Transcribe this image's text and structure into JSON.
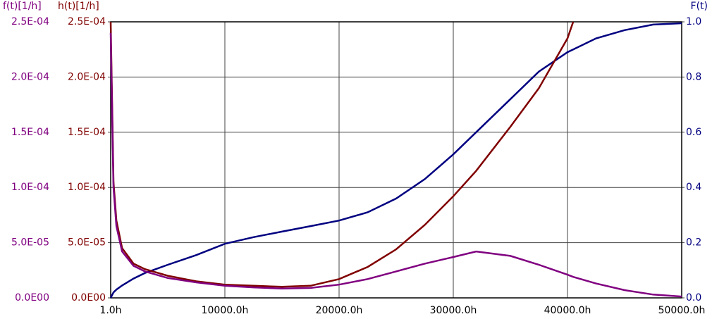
{
  "chart_data": {
    "type": "line",
    "y_label": "f(t)[1/h]",
    "y3_label": "h(t)[1/h]",
    "y2_label": "F(t)",
    "x": [
      1,
      250,
      500,
      1000,
      2000,
      3000,
      5000,
      7500,
      10000,
      12500,
      15000,
      17500,
      20000,
      22500,
      25000,
      27500,
      30000,
      32000,
      35000,
      37500,
      40000,
      40500,
      42500,
      45000,
      47500,
      50000
    ],
    "xlim": [
      1,
      50000
    ],
    "xticks": [
      {
        "value": 1,
        "label": "1.0h"
      },
      {
        "value": 10000,
        "label": "10000.0h"
      },
      {
        "value": 20000,
        "label": "20000.0h"
      },
      {
        "value": 30000,
        "label": "30000.0h"
      },
      {
        "value": 40000,
        "label": "40000.0h"
      },
      {
        "value": 50000,
        "label": "50000.0h"
      }
    ],
    "ylim": [
      0,
      0.00025
    ],
    "yticks": [
      {
        "value": 0,
        "label": "0.0E00"
      },
      {
        "value": 5e-05,
        "label": "5.0E-05"
      },
      {
        "value": 0.0001,
        "label": "1.0E-04"
      },
      {
        "value": 0.00015,
        "label": "1.5E-04"
      },
      {
        "value": 0.0002,
        "label": "2.0E-04"
      },
      {
        "value": 0.00025,
        "label": "2.5E-04"
      }
    ],
    "y3lim": [
      0,
      0.00025
    ],
    "y3ticks": [
      {
        "value": 0,
        "label": "0.0E00"
      },
      {
        "value": 5e-05,
        "label": "5.0E-05"
      },
      {
        "value": 0.0001,
        "label": "1.0E-04"
      },
      {
        "value": 0.00015,
        "label": "1.5E-04"
      },
      {
        "value": 0.0002,
        "label": "2.0E-04"
      },
      {
        "value": 0.00025,
        "label": "2.5E-04"
      }
    ],
    "y2lim": [
      0,
      1
    ],
    "y2ticks": [
      {
        "value": 0,
        "label": "0.0"
      },
      {
        "value": 0.2,
        "label": "0.2"
      },
      {
        "value": 0.4,
        "label": "0.4"
      },
      {
        "value": 0.6,
        "label": "0.6"
      },
      {
        "value": 0.8,
        "label": "0.8"
      },
      {
        "value": 1,
        "label": "1.0"
      }
    ],
    "grid": true,
    "axis_colors": {
      "y": "#800080",
      "y3": "#800000",
      "y2": "#000080"
    },
    "series": [
      {
        "axis": "y2",
        "color": "#000080",
        "values": [
          0,
          0.02,
          0.03,
          0.045,
          0.07,
          0.09,
          0.12,
          0.155,
          0.196,
          0.22,
          0.24,
          0.26,
          0.28,
          0.31,
          0.36,
          0.43,
          0.52,
          0.6,
          0.72,
          0.82,
          0.89,
          0.9,
          0.94,
          0.97,
          0.99,
          0.995
        ]
      },
      {
        "axis": "y3",
        "color": "#800000",
        "values": [
          0.00025,
          0.000105,
          7e-05,
          4.5e-05,
          3.1e-05,
          2.6e-05,
          2e-05,
          1.5e-05,
          1.2e-05,
          1.1e-05,
          1e-05,
          1.1e-05,
          1.7e-05,
          2.8e-05,
          4.4e-05,
          6.6e-05,
          9.2e-05,
          0.000115,
          0.000155,
          0.00019,
          0.000235,
          0.00025,
          null,
          null,
          null,
          null
        ]
      },
      {
        "axis": "y",
        "color": "#800080",
        "values": [
          0.00024,
          0.0001,
          6.5e-05,
          4.2e-05,
          2.9e-05,
          2.4e-05,
          1.8e-05,
          1.4e-05,
          1.1e-05,
          9.5e-06,
          8.5e-06,
          9e-06,
          1.2e-05,
          1.7e-05,
          2.4e-05,
          3.1e-05,
          3.7e-05,
          4.2e-05,
          3.8e-05,
          3e-05,
          2.1e-05,
          1.9e-05,
          1.3e-05,
          7e-06,
          3e-06,
          1.2e-06
        ]
      }
    ]
  }
}
